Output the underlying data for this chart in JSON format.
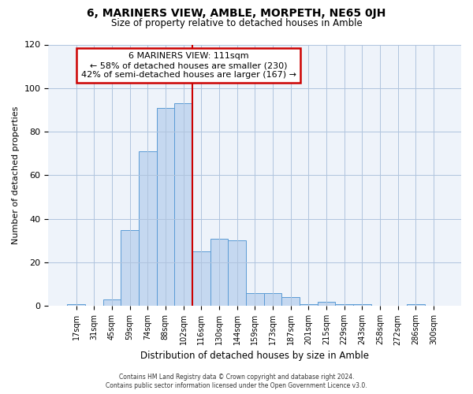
{
  "title": "6, MARINERS VIEW, AMBLE, MORPETH, NE65 0JH",
  "subtitle": "Size of property relative to detached houses in Amble",
  "xlabel": "Distribution of detached houses by size in Amble",
  "ylabel": "Number of detached properties",
  "bar_labels": [
    "17sqm",
    "31sqm",
    "45sqm",
    "59sqm",
    "74sqm",
    "88sqm",
    "102sqm",
    "116sqm",
    "130sqm",
    "144sqm",
    "159sqm",
    "173sqm",
    "187sqm",
    "201sqm",
    "215sqm",
    "229sqm",
    "243sqm",
    "258sqm",
    "272sqm",
    "286sqm",
    "300sqm"
  ],
  "bar_values": [
    1,
    0,
    3,
    35,
    71,
    91,
    93,
    25,
    31,
    30,
    6,
    6,
    4,
    1,
    2,
    1,
    1,
    0,
    0,
    1,
    0
  ],
  "bar_color": "#c5d8f0",
  "bar_edge_color": "#5b9bd5",
  "vline_index": 6,
  "vline_color": "#cc0000",
  "ylim": [
    0,
    120
  ],
  "yticks": [
    0,
    20,
    40,
    60,
    80,
    100,
    120
  ],
  "annotation_line1": "6 MARINERS VIEW: 111sqm",
  "annotation_line2": "← 58% of detached houses are smaller (230)",
  "annotation_line3": "42% of semi-detached houses are larger (167) →",
  "annotation_box_color": "#ffffff",
  "annotation_box_edge": "#cc0000",
  "footer1": "Contains HM Land Registry data © Crown copyright and database right 2024.",
  "footer2": "Contains public sector information licensed under the Open Government Licence v3.0.",
  "background_color": "#ffffff",
  "grid_color": "#b0c4de",
  "plot_bg_color": "#eef3fa"
}
